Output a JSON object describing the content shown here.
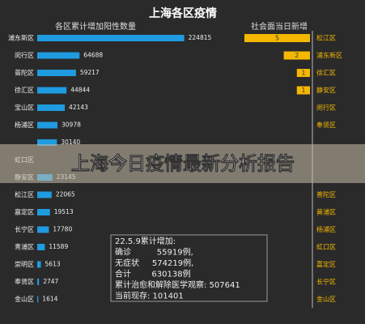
{
  "chart_data": {
    "type": "bar",
    "title": "上海各区疫情",
    "left": {
      "subtitle": "各区累计增加阳性数量",
      "color": "#1f9be0",
      "xlim": [
        0,
        250000
      ],
      "categories": [
        "浦东新区",
        "闵行区",
        "普陀区",
        "徐汇区",
        "宝山区",
        "杨浦区",
        null,
        "虹口区",
        "静安区",
        "松江区",
        "嘉定区",
        "长宁区",
        "青浦区",
        "崇明区",
        "奉贤区",
        "金山区"
      ],
      "values": [
        224815,
        64688,
        59217,
        44844,
        42143,
        30978,
        30140,
        null,
        23145,
        22065,
        19513,
        17780,
        11589,
        5613,
        2747,
        1614
      ]
    },
    "right": {
      "subtitle": "社会面当日新增",
      "color": "#f5b800",
      "xlim": [
        0,
        5
      ],
      "categories": [
        "松江区",
        "浦东新区",
        "徐汇区",
        "静安区",
        "闵行区",
        "奉贤区",
        null,
        null,
        null,
        "普陀区",
        "黄浦区",
        "杨浦区",
        "虹口区",
        "嘉定区",
        "长宁区",
        "金山区"
      ],
      "values": [
        5,
        2,
        1,
        1,
        0,
        0,
        null,
        null,
        null,
        0,
        0,
        0,
        0,
        0,
        0,
        0
      ]
    },
    "banner": "上海今日疫情最新分析报告",
    "summary": [
      "22.5.9累计增加:",
      "确诊          55919例,",
      "无症状     574219例,",
      "合计        630138例",
      "累计治愈和解除医学观察: 507641",
      "当前现存: 101401"
    ]
  }
}
